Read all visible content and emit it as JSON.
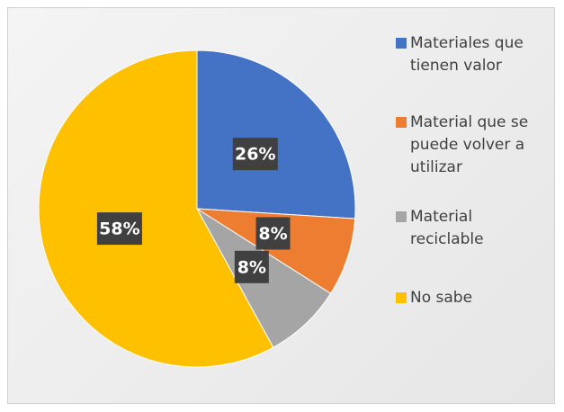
{
  "chart_data": {
    "type": "pie",
    "categories": [
      "Materiales que tienen valor",
      "Material que se puede volver a utilizar",
      "Material reciclable",
      "No sabe"
    ],
    "values": [
      26,
      8,
      8,
      58
    ],
    "value_labels": [
      "26%",
      "8%",
      "8%",
      "58%"
    ],
    "colors": [
      "#4472c4",
      "#ed7d31",
      "#a5a5a5",
      "#ffc000"
    ]
  }
}
